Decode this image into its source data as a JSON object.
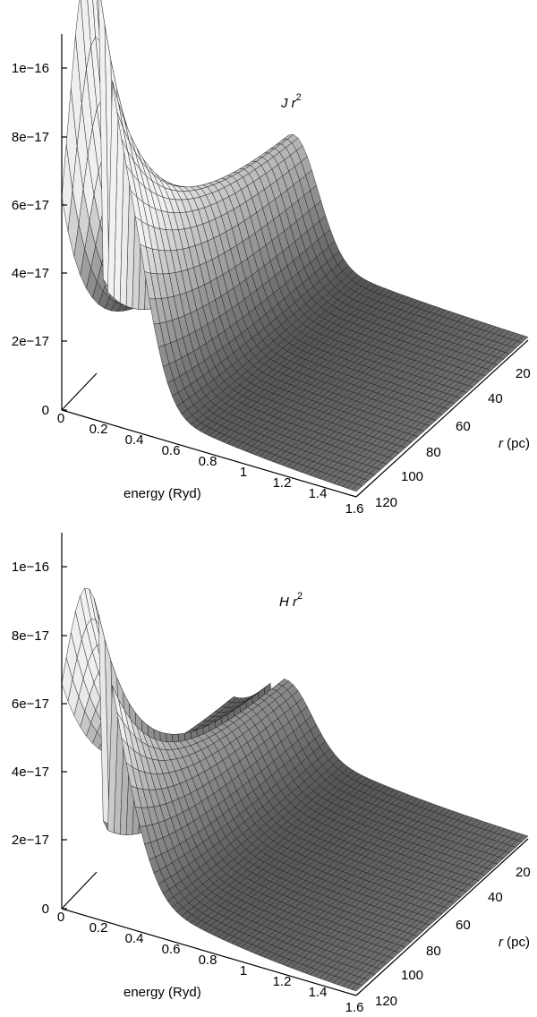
{
  "chart_data": [
    {
      "type": "surface",
      "title_italic": "J",
      "title_rest": " r",
      "title_exp": "2",
      "xlabel": "energy (Ryd)",
      "ylabel_italic": "r",
      "ylabel_rest": " (pc)",
      "x_ticks": [
        "0",
        "0.2",
        "0.4",
        "0.6",
        "0.8",
        "1",
        "1.2",
        "1.4",
        "1.6"
      ],
      "y_ticks": [
        "20",
        "40",
        "60",
        "80",
        "100",
        "120"
      ],
      "z_ticks": [
        "0",
        "2e−17",
        "4e−17",
        "6e−17",
        "8e−17",
        "1e−16"
      ],
      "xlim": [
        0,
        1.6
      ],
      "ylim": [
        0,
        125
      ],
      "zlim": [
        0,
        1.1e-16
      ],
      "peak_value": 1.1e-16,
      "second_peak_value": 5.9e-17,
      "colormap": [
        "#111111",
        "#f2f2f2"
      ]
    },
    {
      "type": "surface",
      "title_italic": "H",
      "title_rest": " r",
      "title_exp": "2",
      "xlabel": "energy (Ryd)",
      "ylabel_italic": "r",
      "ylabel_rest": " (pc)",
      "x_ticks": [
        "0",
        "0.2",
        "0.4",
        "0.6",
        "0.8",
        "1",
        "1.2",
        "1.4",
        "1.6"
      ],
      "y_ticks": [
        "20",
        "40",
        "60",
        "80",
        "100",
        "120"
      ],
      "z_ticks": [
        "0",
        "2e−17",
        "4e−17",
        "6e−17",
        "8e−17",
        "1e−16"
      ],
      "xlim": [
        0,
        1.6
      ],
      "ylim": [
        0,
        125
      ],
      "zlim": [
        0,
        1.1e-16
      ],
      "peak_value": 7.3e-17,
      "second_peak_value": 2.7e-17,
      "colormap": [
        "#111111",
        "#f2f2f2"
      ]
    }
  ]
}
